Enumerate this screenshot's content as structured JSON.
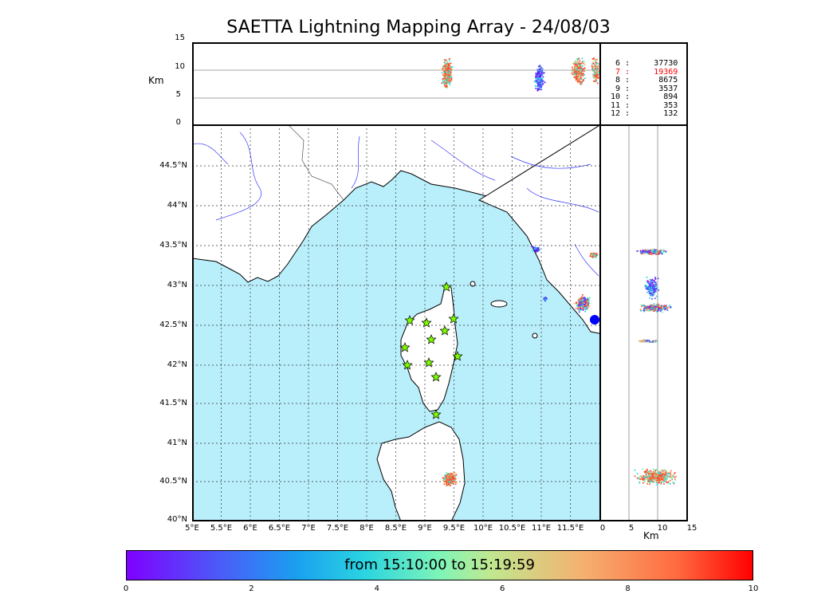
{
  "title": "SAETTA Lightning Mapping Array - 24/08/03",
  "altitude_unit": "Km",
  "top_panel_yticks": [
    "15",
    "10",
    "5",
    "0"
  ],
  "right_panel_xticks": [
    "0",
    "5",
    "10",
    "15"
  ],
  "lat_labels": [
    "44.5°N",
    "44°N",
    "43.5°N",
    "43°N",
    "42.5°N",
    "42°N",
    "41.5°N",
    "41°N",
    "40.5°N",
    "40°N"
  ],
  "lon_labels": [
    "5°E",
    "5.5°E",
    "6°E",
    "6.5°E",
    "7°E",
    "7.5°E",
    "8°E",
    "8.5°E",
    "9°E",
    "9.5°E",
    "10°E",
    "10.5°E",
    "11°E",
    "11.5°E"
  ],
  "station_counts": [
    {
      "stations": "6",
      "count": "37730",
      "highlight": false
    },
    {
      "stations": "7",
      "count": "19369",
      "highlight": true
    },
    {
      "stations": "8",
      "count": "8675",
      "highlight": false
    },
    {
      "stations": "9",
      "count": "3537",
      "highlight": false
    },
    {
      "stations": "10",
      "count": "894",
      "highlight": false
    },
    {
      "stations": "11",
      "count": "353",
      "highlight": false
    },
    {
      "stations": "12",
      "count": "132",
      "highlight": false
    }
  ],
  "colorbar": {
    "label": "from 15:10:00 to 15:19:59",
    "ticks": [
      "0",
      "2",
      "4",
      "6",
      "8",
      "10"
    ]
  },
  "colors": {
    "sea": "#b9eefb",
    "land": "#ffffff",
    "river": "#3a3aff",
    "station": "#7cfc00"
  }
}
